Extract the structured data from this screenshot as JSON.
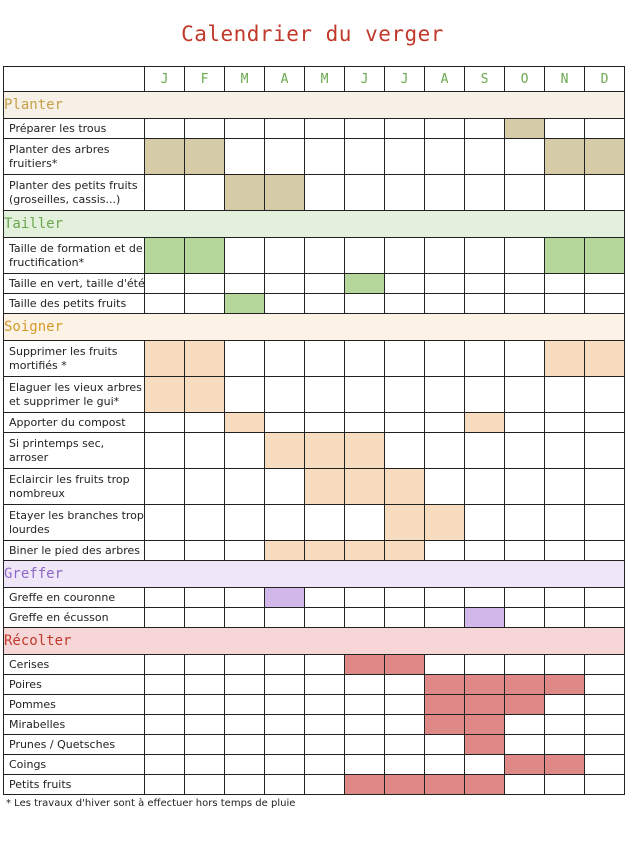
{
  "title": "Calendrier du verger",
  "months": [
    "J",
    "F",
    "M",
    "A",
    "M",
    "J",
    "J",
    "A",
    "S",
    "O",
    "N",
    "D"
  ],
  "footnote": "*  Les travaux d'hiver sont à effectuer hors temps de pluie",
  "sections": [
    {
      "name": "Planter",
      "title_color": "#c6a14a",
      "bg": "#f6f0e6",
      "fill": "#d6cba7",
      "tasks": [
        {
          "label": "Préparer les trous",
          "months": [
            10
          ],
          "h": 20
        },
        {
          "label": "Planter des arbres\nfruitiers*",
          "months": [
            1,
            2,
            11,
            12
          ],
          "h": 36
        },
        {
          "label": "Planter des petits fruits\n(groseilles, cassis...)",
          "months": [
            3,
            4
          ],
          "h": 36
        }
      ]
    },
    {
      "name": "Tailler",
      "title_color": "#6aa84f",
      "bg": "#e3f0dc",
      "fill": "#b5d79b",
      "tasks": [
        {
          "label": "Taille de formation et de\nfructification*",
          "months": [
            1,
            2,
            11,
            12
          ],
          "h": 36
        },
        {
          "label": "Taille en vert, taille d'été",
          "months": [
            6
          ],
          "h": 20
        },
        {
          "label": "Taille des petits fruits",
          "months": [
            3
          ],
          "h": 20
        }
      ]
    },
    {
      "name": "Soigner",
      "title_color": "#d49a2a",
      "bg": "#fdf2e6",
      "fill": "#f8dcbf",
      "tasks": [
        {
          "label": "Supprimer les fruits\nmortifiés *",
          "months": [
            1,
            2,
            11,
            12
          ],
          "h": 36
        },
        {
          "label": "Elaguer les vieux arbres\net supprimer le gui*",
          "months": [
            1,
            2
          ],
          "h": 36
        },
        {
          "label": "Apporter du compost",
          "months": [
            3,
            9
          ],
          "h": 20
        },
        {
          "label": "Si printemps sec,\narroser",
          "months": [
            4,
            5,
            6
          ],
          "h": 36
        },
        {
          "label": "Eclaircir les fruits trop\nnombreux",
          "months": [
            5,
            6,
            7
          ],
          "h": 36
        },
        {
          "label": "Etayer les branches trop\nlourdes",
          "months": [
            7,
            8
          ],
          "h": 36
        },
        {
          "label": "Biner le pied des arbres",
          "months": [
            4,
            5,
            6,
            7
          ],
          "h": 20
        }
      ]
    },
    {
      "name": "Greffer",
      "title_color": "#8e67c7",
      "bg": "#efe6f7",
      "fill": "#d1b7ea",
      "tasks": [
        {
          "label": "Greffe en couronne",
          "months": [
            4
          ],
          "h": 20
        },
        {
          "label": "Greffe en écusson",
          "months": [
            9
          ],
          "h": 20
        }
      ]
    },
    {
      "name": "Récolter",
      "title_color": "#c0392b",
      "bg": "#f6d6d6",
      "fill": "#df8888",
      "tasks": [
        {
          "label": "Cerises",
          "months": [
            6,
            7
          ],
          "h": 20
        },
        {
          "label": "Poires",
          "months": [
            8,
            9,
            10,
            11
          ],
          "h": 20
        },
        {
          "label": "Pommes",
          "months": [
            8,
            9,
            10
          ],
          "h": 20
        },
        {
          "label": "Mirabelles",
          "months": [
            8,
            9
          ],
          "h": 20
        },
        {
          "label": "Prunes / Quetsches",
          "months": [
            9
          ],
          "h": 20
        },
        {
          "label": "Coings",
          "months": [
            10,
            11
          ],
          "h": 20
        },
        {
          "label": "Petits fruits",
          "months": [
            6,
            7,
            8,
            9
          ],
          "h": 20
        }
      ]
    }
  ]
}
